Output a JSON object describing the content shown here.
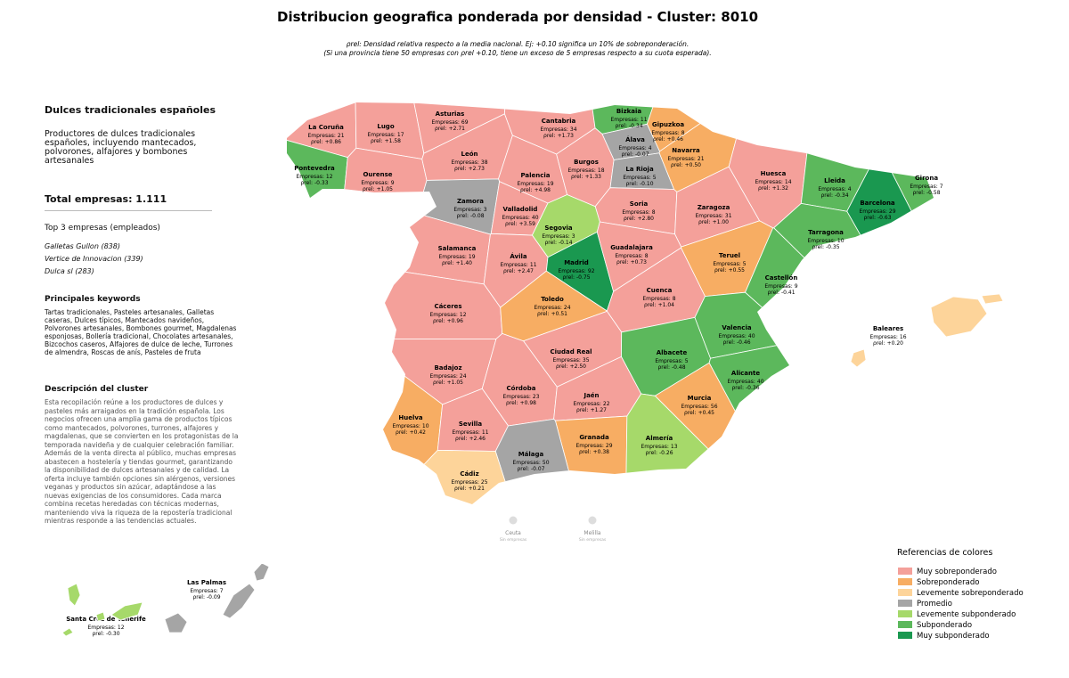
{
  "title": "Distribucion geografica ponderada por densidad - Cluster: 8010",
  "subtitle": [
    "ρrel: Densidad relativa respecto a la media nacional. Ej: +0.10 significa un 10% de sobreponderación.",
    "(Si una provincia tiene 50 empresas con ρrel +0.10, tiene un exceso de 5 empresas respecto a su cuota esperada)."
  ],
  "panel": {
    "heading": "Dulces tradicionales españoles",
    "summary": "Productores de dulces tradicionales españoles, incluyendo mantecados, polvorones, alfajores y bombones artesanales",
    "total": "Total empresas: 1.111",
    "top_title": "Top 3 empresas (empleados)",
    "top": [
      "Galletas Gullon (838)",
      "Vertice de Innovacion (339)",
      "Dulca sl (283)"
    ],
    "keywords_title": "Principales keywords",
    "keywords": "Tartas tradicionales, Pasteles artesanales, Galletas caseras, Dulces típicos, Mantecados navideños, Polvorones artesanales, Bombones gourmet, Magdalenas esponjosas, Bollería tradicional, Chocolates artesanales, Bizcochos caseros, Alfajores de dulce de leche, Turrones de almendra, Roscas de anís, Pasteles de fruta",
    "description_title": "Descripción del cluster",
    "description": "Esta recopilación reúne a los productores de dulces y pasteles más arraigados en la tradición española. Los negocios ofrecen una amplia gama de productos típicos como mantecados, polvorones, turrones, alfajores y magdalenas, que se convierten en los protagonistas de la temporada navideña y de cualquier celebración familiar. Además de la venta directa al público, muchas empresas abastecen a hostelería y tiendas gourmet, garantizando la disponibilidad de dulces artesanales y de calidad. La oferta incluye también opciones sin alérgenos, versiones veganas y productos sin azúcar, adaptándose a las nuevas exigencias de los consumidores. Cada marca combina recetas heredadas con técnicas modernas, manteniendo viva la riqueza de la repostería tradicional mientras responde a las tendencias actuales."
  },
  "companies_prefix": "Empresas:",
  "rho_prefix": "ρrel:",
  "provinces": [
    {
      "name": "La Coruña",
      "companies": 21,
      "rho": 0.86,
      "rho_label": "+0.86",
      "color": "#f4a09a"
    },
    {
      "name": "Lugo",
      "companies": 17,
      "rho": 1.58,
      "rho_label": "+1.58",
      "color": "#f4a09a"
    },
    {
      "name": "Asturias",
      "companies": 69,
      "rho": 2.71,
      "rho_label": "+2.71",
      "color": "#f4a09a"
    },
    {
      "name": "Cantabria",
      "companies": 34,
      "rho": 1.73,
      "rho_label": "+1.73",
      "color": "#f4a09a"
    },
    {
      "name": "Bizkaia",
      "companies": 11,
      "rho": -0.34,
      "rho_label": "-0.34",
      "color": "#5cb85c"
    },
    {
      "name": "Gipuzkoa",
      "companies": 8,
      "rho": 0.46,
      "rho_label": "+0.46",
      "color": "#f7ad63"
    },
    {
      "name": "Álava",
      "companies": 4,
      "rho": -0.07,
      "rho_label": "-0.07",
      "color": "#a5a5a5"
    },
    {
      "name": "Navarra",
      "companies": 21,
      "rho": 0.5,
      "rho_label": "+0.50",
      "color": "#f7ad63"
    },
    {
      "name": "Pontevedra",
      "companies": 12,
      "rho": -0.33,
      "rho_label": "-0.33",
      "color": "#5cb85c"
    },
    {
      "name": "Ourense",
      "companies": 9,
      "rho": 1.05,
      "rho_label": "+1.05",
      "color": "#f4a09a"
    },
    {
      "name": "León",
      "companies": 38,
      "rho": 2.73,
      "rho_label": "+2.73",
      "color": "#f4a09a"
    },
    {
      "name": "Palencia",
      "companies": 19,
      "rho": 4.98,
      "rho_label": "+4.98",
      "color": "#f4a09a"
    },
    {
      "name": "Burgos",
      "companies": 18,
      "rho": 1.33,
      "rho_label": "+1.33",
      "color": "#f4a09a"
    },
    {
      "name": "La Rioja",
      "companies": 5,
      "rho": -0.1,
      "rho_label": "-0.10",
      "color": "#a5a5a5"
    },
    {
      "name": "Huesca",
      "companies": 14,
      "rho": 1.32,
      "rho_label": "+1.32",
      "color": "#f4a09a"
    },
    {
      "name": "Lleida",
      "companies": 4,
      "rho": -0.34,
      "rho_label": "-0.34",
      "color": "#5cb85c"
    },
    {
      "name": "Girona",
      "companies": 7,
      "rho": -0.58,
      "rho_label": "-0.58",
      "color": "#5cb85c"
    },
    {
      "name": "Barcelona",
      "companies": 29,
      "rho": -0.63,
      "rho_label": "-0.63",
      "color": "#1a9850"
    },
    {
      "name": "Zamora",
      "companies": 3,
      "rho": -0.08,
      "rho_label": "-0.08",
      "color": "#a5a5a5"
    },
    {
      "name": "Valladolid",
      "companies": 40,
      "rho": 3.59,
      "rho_label": "+3.59",
      "color": "#f4a09a"
    },
    {
      "name": "Soria",
      "companies": 8,
      "rho": 2.8,
      "rho_label": "+2.80",
      "color": "#f4a09a"
    },
    {
      "name": "Zaragoza",
      "companies": 31,
      "rho": 1.0,
      "rho_label": "+1.00",
      "color": "#f4a09a"
    },
    {
      "name": "Segovia",
      "companies": 3,
      "rho": -0.14,
      "rho_label": "-0.14",
      "color": "#a6d96a"
    },
    {
      "name": "Tarragona",
      "companies": 10,
      "rho": -0.35,
      "rho_label": "-0.35",
      "color": "#5cb85c"
    },
    {
      "name": "Salamanca",
      "companies": 19,
      "rho": 1.4,
      "rho_label": "+1.40",
      "color": "#f4a09a"
    },
    {
      "name": "Ávila",
      "companies": 11,
      "rho": 2.47,
      "rho_label": "+2.47",
      "color": "#f4a09a"
    },
    {
      "name": "Madrid",
      "companies": 92,
      "rho": -0.75,
      "rho_label": "-0.75",
      "color": "#1a9850"
    },
    {
      "name": "Guadalajara",
      "companies": 8,
      "rho": 0.73,
      "rho_label": "+0.73",
      "color": "#f4a09a"
    },
    {
      "name": "Teruel",
      "companies": 5,
      "rho": 0.55,
      "rho_label": "+0.55",
      "color": "#f7ad63"
    },
    {
      "name": "Castellón",
      "companies": 9,
      "rho": -0.41,
      "rho_label": "-0.41",
      "color": "#5cb85c"
    },
    {
      "name": "Cáceres",
      "companies": 12,
      "rho": 0.96,
      "rho_label": "+0.96",
      "color": "#f4a09a"
    },
    {
      "name": "Toledo",
      "companies": 24,
      "rho": 0.51,
      "rho_label": "+0.51",
      "color": "#f7ad63"
    },
    {
      "name": "Cuenca",
      "companies": 8,
      "rho": 1.04,
      "rho_label": "+1.04",
      "color": "#f4a09a"
    },
    {
      "name": "Valencia",
      "companies": 40,
      "rho": -0.46,
      "rho_label": "-0.46",
      "color": "#5cb85c"
    },
    {
      "name": "Baleares",
      "companies": 16,
      "rho": 0.2,
      "rho_label": "+0.20",
      "color": "#fdd49a"
    },
    {
      "name": "Badajoz",
      "companies": 24,
      "rho": 1.05,
      "rho_label": "+1.05",
      "color": "#f4a09a"
    },
    {
      "name": "Ciudad Real",
      "companies": 35,
      "rho": 2.5,
      "rho_label": "+2.50",
      "color": "#f4a09a"
    },
    {
      "name": "Albacete",
      "companies": 5,
      "rho": -0.48,
      "rho_label": "-0.48",
      "color": "#5cb85c"
    },
    {
      "name": "Alicante",
      "companies": 40,
      "rho": -0.36,
      "rho_label": "-0.36",
      "color": "#5cb85c"
    },
    {
      "name": "Córdoba",
      "companies": 23,
      "rho": 0.98,
      "rho_label": "+0.98",
      "color": "#f4a09a"
    },
    {
      "name": "Jaén",
      "companies": 22,
      "rho": 1.27,
      "rho_label": "+1.27",
      "color": "#f4a09a"
    },
    {
      "name": "Murcia",
      "companies": 56,
      "rho": 0.45,
      "rho_label": "+0.45",
      "color": "#f7ad63"
    },
    {
      "name": "Huelva",
      "companies": 10,
      "rho": 0.42,
      "rho_label": "+0.42",
      "color": "#f7ad63"
    },
    {
      "name": "Sevilla",
      "companies": 11,
      "rho": 2.46,
      "rho_label": "+2.46",
      "color": "#f4a09a"
    },
    {
      "name": "Granada",
      "companies": 29,
      "rho": 0.38,
      "rho_label": "+0.38",
      "color": "#f7ad63"
    },
    {
      "name": "Almería",
      "companies": 13,
      "rho": -0.26,
      "rho_label": "-0.26",
      "color": "#a6d96a"
    },
    {
      "name": "Málaga",
      "companies": 50,
      "rho": -0.07,
      "rho_label": "-0.07",
      "color": "#a5a5a5"
    },
    {
      "name": "Cádiz",
      "companies": 25,
      "rho": 0.21,
      "rho_label": "+0.21",
      "color": "#fdd49a"
    },
    {
      "name": "Las Palmas",
      "companies": 7,
      "rho": -0.09,
      "rho_label": "-0.09",
      "color": "#a5a5a5"
    },
    {
      "name": "Santa Cruz de Tenerife",
      "companies": 12,
      "rho": -0.3,
      "rho_label": "-0.30",
      "color": "#a6d96a"
    }
  ],
  "empty": [
    {
      "name": "Ceuta",
      "note": "Sin empresas"
    },
    {
      "name": "Melilla",
      "note": "Sin empresas"
    }
  ],
  "legend": {
    "title": "Referencias de colores",
    "items": [
      {
        "name": "Muy sobreponderado",
        "color": "#f4a09a"
      },
      {
        "name": "Sobreponderado",
        "color": "#f7ad63"
      },
      {
        "name": "Levemente sobreponderado",
        "color": "#fdd49a"
      },
      {
        "name": "Promedio",
        "color": "#a5a5a5"
      },
      {
        "name": "Levemente subponderado",
        "color": "#a6d96a"
      },
      {
        "name": "Subponderado",
        "color": "#5cb85c"
      },
      {
        "name": "Muy subponderado",
        "color": "#1a9850"
      }
    ]
  }
}
